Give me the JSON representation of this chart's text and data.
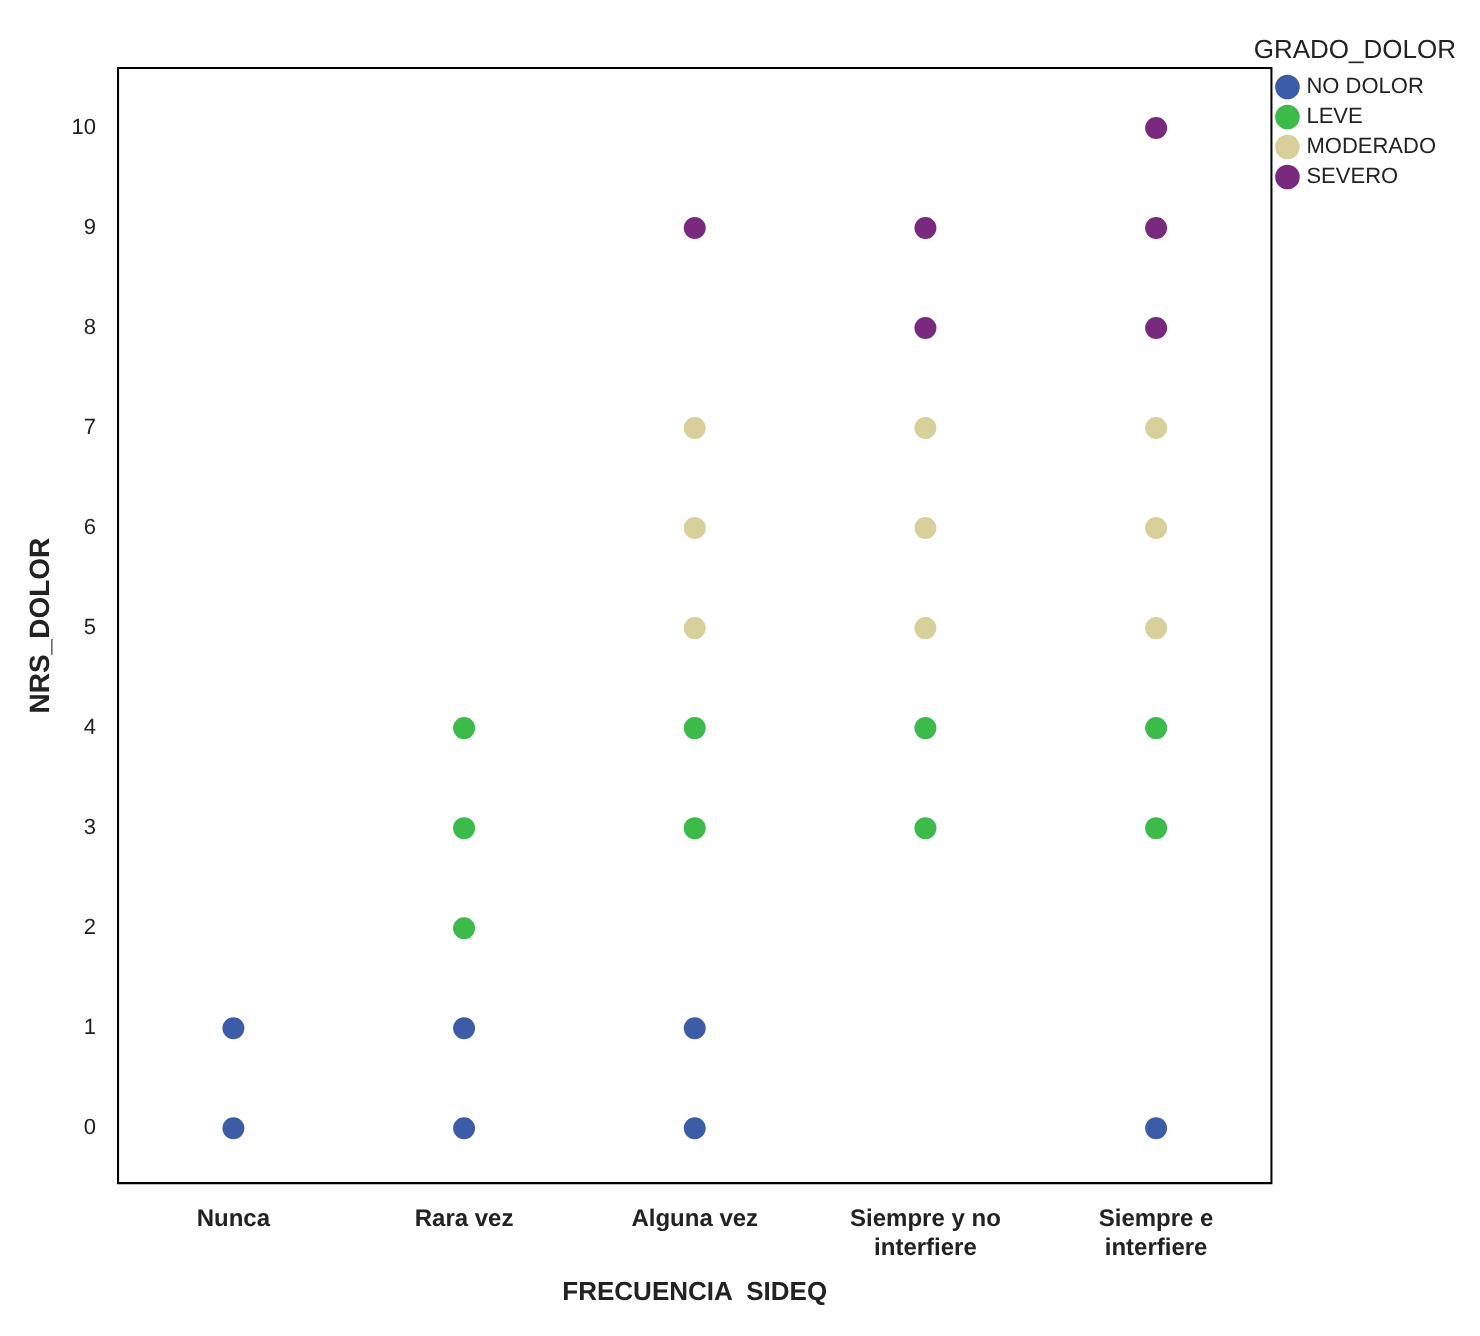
{
  "chart_data": {
    "type": "scatter",
    "xlabel": "FRECUENCIA  SIDEQ",
    "ylabel": "NRS_DOLOR",
    "legend_title": "GRADO_DOLOR",
    "categories": [
      "Nunca",
      "Rara vez",
      "Alguna vez",
      "Siempre y no interfiere",
      "Siempre e interfiere"
    ],
    "ylim": [
      -0.55,
      10.6
    ],
    "yticks": [
      0,
      1,
      2,
      3,
      4,
      5,
      6,
      7,
      8,
      9,
      10
    ],
    "grid": false,
    "legend": "top right",
    "marker": "circle",
    "series": [
      {
        "name": "NO DOLOR",
        "color": "#3d5ca8",
        "x": [
          "Nunca",
          "Nunca",
          "Rara vez",
          "Rara vez",
          "Alguna vez",
          "Alguna vez",
          "Siempre e interfiere"
        ],
        "values": [
          0,
          1,
          0,
          1,
          0,
          1,
          0
        ]
      },
      {
        "name": "LEVE",
        "color": "#3cbb4a",
        "x": [
          "Rara vez",
          "Rara vez",
          "Rara vez",
          "Alguna vez",
          "Alguna vez",
          "Siempre y no interfiere",
          "Siempre y no interfiere",
          "Siempre e interfiere",
          "Siempre e interfiere"
        ],
        "values": [
          2,
          3,
          4,
          3,
          4,
          3,
          4,
          3,
          4
        ]
      },
      {
        "name": "MODERADO",
        "color": "#d7d09a",
        "x": [
          "Alguna vez",
          "Alguna vez",
          "Alguna vez",
          "Siempre y no interfiere",
          "Siempre y no interfiere",
          "Siempre y no interfiere",
          "Siempre e interfiere",
          "Siempre e interfiere",
          "Siempre e interfiere"
        ],
        "values": [
          5,
          6,
          7,
          5,
          6,
          7,
          5,
          6,
          7
        ]
      },
      {
        "name": "SEVERO",
        "color": "#7a2a7e",
        "x": [
          "Alguna vez",
          "Siempre y no interfiere",
          "Siempre y no interfiere",
          "Siempre e interfiere",
          "Siempre e interfiere",
          "Siempre e interfiere"
        ],
        "values": [
          9,
          8,
          9,
          8,
          9,
          10
        ]
      }
    ]
  }
}
